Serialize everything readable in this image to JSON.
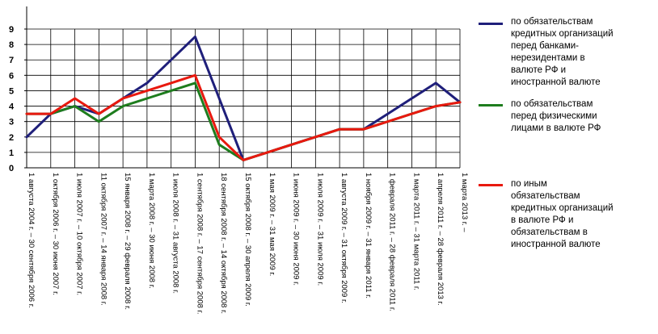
{
  "chart_data": {
    "type": "line",
    "ylim": [
      0,
      9
    ],
    "yticks": [
      "0",
      "1",
      "2",
      "3",
      "4",
      "5",
      "6",
      "7",
      "8",
      "9"
    ],
    "categories": [
      "1 августа 2004 г. – 30 сентября 2006 г.",
      "1 октября 2006 г. – 30 июня 2007 г.",
      "1 июля 2007 г. – 10 октября 2007 г.",
      "11 октября 2007 г. – 14 января 2008 г.",
      "15 января 2008 г. – 29 февраля 2008 г.",
      "1 марта 2008 г. – 30 июня 2008 г.",
      "1 июля 2008 г. – 31 августа 2008 г.",
      "1 сентября 2008 г. – 17 сентября 2008 г.",
      "18 сентября 2008 г. – 14 октября 2008 г.",
      "15 октября 2008 г. – 30 апреля 2009 г.",
      "1 мая 2009 г. – 31 мая 2009 г.",
      "1 июня 2009 г. – 30 июня 2009 г.",
      "1 июля 2009 г. – 31 июля 2009 г.",
      "1 августа 2009 г. – 31 октября 2009 г.",
      "1 ноября 2009 г. – 31 января 2011 г.",
      "1 февраля 2011 г. – 28 февраля 2011 г.",
      "1 марта 2011 г. – 31 марта 2011 г.",
      "1 апреля 2011 г. – 28 февраля 2013 г.",
      "1 марта 2013 г. –"
    ],
    "series": [
      {
        "name": "по обязательствам кредитных организаций перед банками-нерезидентами в валюте РФ и иностранной валюте",
        "color": "#1f1f7a",
        "values": [
          2,
          3.5,
          4,
          3.5,
          4.5,
          5.5,
          7,
          8.5,
          4.5,
          0.5,
          1,
          1.5,
          2,
          2.5,
          2.5,
          3.5,
          4.5,
          5.5,
          4.25
        ]
      },
      {
        "name": "по обязательствам перед физическими лицами в валюте РФ",
        "color": "#1e7d1e",
        "values": [
          3.5,
          3.5,
          4,
          3,
          4,
          4.5,
          5,
          5.5,
          1.5,
          0.5,
          1,
          1.5,
          2,
          2.5,
          2.5,
          3,
          3.5,
          4,
          4.25
        ]
      },
      {
        "name": "по иным обязательствам кредитных организаций в валюте РФ и обязательствам в иностранной валюте",
        "color": "#e8190f",
        "values": [
          3.5,
          3.5,
          4.5,
          3.5,
          4.5,
          5,
          5.5,
          6,
          2,
          0.5,
          1,
          1.5,
          2,
          2.5,
          2.5,
          3,
          3.5,
          4,
          4.25
        ]
      }
    ],
    "legend": {
      "placement": "right",
      "items": [
        "по обязательствам\nкредитных организаций\nперед банками-\nнерезидентами в\nвалюте РФ и\nиностранной валюте",
        " по обязательствам\nперед физическими\nлицами в валюте РФ",
        "по иным\nобязательствам\nкредитных организаций\nв валюте РФ и\nобязательствам в\nиностранной валюте"
      ]
    }
  }
}
